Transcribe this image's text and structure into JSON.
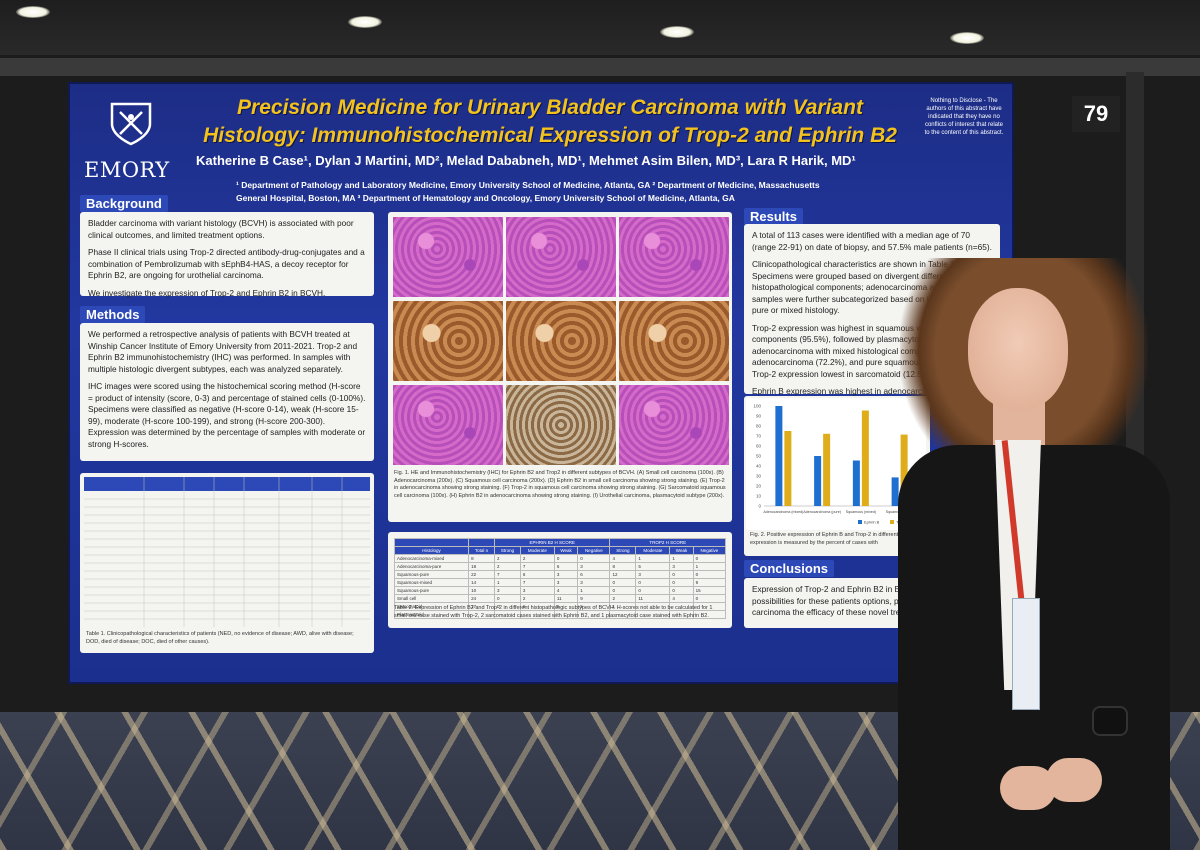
{
  "booth_number": "79",
  "logo": {
    "name": "EMORY"
  },
  "poster": {
    "title_line1": "Precision Medicine for Urinary Bladder Carcinoma with Variant",
    "title_line2": "Histology: Immunohistochemical Expression of Trop-2 and Ephrin B2",
    "authors": "Katherine B Case¹, Dylan J Martini, MD², Melad Dababneh, MD¹, Mehmet Asim Bilen, MD³, Lara R Harik, MD¹",
    "affiliations_line1": "¹ Department of Pathology and Laboratory Medicine, Emory University School of Medicine, Atlanta, GA ² Department of Medicine, Massachusetts",
    "affiliations_line2": "General Hospital, Boston, MA ³ Department of Hematology and Oncology, Emory University School of Medicine, Atlanta, GA",
    "disclosure": "Nothing to Disclose - The authors of this abstract have indicated that they have no conflicts of interest that relate to the content of this abstract.",
    "background": {
      "heading": "Background",
      "p1": "Bladder carcinoma with variant histology (BCVH) is associated with poor clinical outcomes, and limited treatment options.",
      "p2": "Phase II clinical trials using Trop-2 directed antibody-drug-conjugates and a combination of Pembrolizumab with sEphB4-HAS, a decoy receptor for Ephrin B2, are ongoing for urothelial carcinoma.",
      "p3": "We investigate the expression of Trop-2 and Ephrin B2 in BCVH."
    },
    "methods": {
      "heading": "Methods",
      "p1": "We performed a retrospective analysis of patients with BCVH treated at Winship Cancer Institute of Emory University from 2011-2021. Trop-2 and Ephrin B2 immunohistochemistry (IHC) was performed. In samples with multiple histologic divergent subtypes, each was analyzed separately.",
      "p2": "IHC images were scored using the histochemical scoring method (H-score = product of intensity (score, 0-3) and percentage of stained cells (0-100%). Specimens were classified as negative (H-score 0-14), weak (H-score 15-99), moderate (H-score 100-199), and strong (H-score 200-300). Expression was determined by the percentage of samples with moderate or strong H-scores."
    },
    "table1_caption": "Table 1. Clinicopathological characteristics of patients (NED, no evidence of disease; AWD, alive with disease; DOD, died of disease; DOC, died of other causes).",
    "fig1_caption": "Fig. 1. HE and Immunohistochemistry (IHC) for Ephrin B2 and Trop2 in different subtypes of BCVH. (A) Small cell carcinoma (100x). (B) Adenocarcinoma (200x). (C) Squamous cell carcinoma (200x). (D) Ephrin B2 in small cell carcinoma showing strong staining. (E) Trop-2 in adenocarcinoma showing strong staining. (F) Trop-2 in squamous cell carcinoma showing strong staining. (G) Sarcomatoid squamous cell carcinoma (100x). (H) Ephrin B2 in adenocarcinoma showing strong staining. (I) Urothelial carcinoma, plasmacytoid subtype (200x).",
    "table2": {
      "group1": "EPHRIN B2 H SCORE",
      "group2": "TROP2 H SCORE",
      "headers": [
        "Histology",
        "Total n",
        "Strong",
        "Moderate",
        "Weak",
        "Negative",
        "Strong",
        "Moderate",
        "Weak",
        "Negative"
      ],
      "rows": [
        [
          "Adenocarcinoma-mixed",
          "8",
          "2",
          "2",
          "0",
          "0",
          "4",
          "1",
          "1",
          "0"
        ],
        [
          "Adenocarcinoma-pure",
          "18",
          "2",
          "7",
          "6",
          "3",
          "8",
          "5",
          "3",
          "1"
        ],
        [
          "Squamous-pure",
          "22",
          "7",
          "6",
          "3",
          "6",
          "12",
          "3",
          "0",
          "0"
        ],
        [
          "Squamous-mixed",
          "14",
          "1",
          "7",
          "3",
          "3",
          "0",
          "0",
          "0",
          "9"
        ],
        [
          "Squamous-pure",
          "10",
          "3",
          "3",
          "4",
          "1",
          "0",
          "0",
          "0",
          "15"
        ],
        [
          "Small cell",
          "24",
          "0",
          "2",
          "11",
          "9",
          "2",
          "11",
          "4",
          "0"
        ],
        [
          "Sarcomatoid",
          "17",
          "0",
          "6",
          "5",
          "5",
          "1",
          "",
          "",
          ""
        ],
        [
          "Plasmacytoid",
          "",
          "",
          "",
          "",
          "",
          "",
          "",
          "",
          ""
        ]
      ],
      "caption": "Table 2. Expression of Ephrin B2 and Trop-2 in different histopathologic subtypes of BCVH. H-scores not able to be calculated for 1 small cell case stained with Trop-2, 2 sarcomatoid cases stained with Ephrin B2, and 1 plasmacytoid case stained with Ephrin B2."
    },
    "results": {
      "heading": "Results",
      "p1": "A total of 113 cases were identified with a median age of 70 (range 22-91) on date of biopsy, and 57.5% male patients (n=65).",
      "p2": "Clinicopathological characteristics are shown in Table 1. Specimens were grouped based on divergent differentiation of histopathological components; adenocarcinoma and squamous samples were further subcategorized based on the presence of pure or mixed histology.",
      "p3": "Trop-2 expression was highest in squamous with mixed histology components (95.5%), followed by plasmacytoid (76.5%), adenocarcinoma with mixed histological components (75.0%), adenocarcinoma (72.2%), and pure squamous (71.42%) (Fig. Trop-2 expression lowest in sarcomatoid (12.5%) and small",
      "p4": "Ephrin B expression was highest in adenocarcinoma mixed (100%), followed by pure adenocarcinoma (50%), small squamous mixed-type (45.5%), pure squamous (28.6% (37.5%), and sarcomatoid (9.1%)."
    },
    "fig2_caption": "Fig. 2. Positive expression of Ephrin B and Trop-2 in different positive expression is measured by the percent of cases with",
    "conclusions": {
      "heading": "Conclusions",
      "text": "Expression of Trop-2 and Ephrin B2 in BCV therapeutic possibilities for these patients options, particularly in small cell carcinoma the efficacy of these novel treatments in BC"
    }
  },
  "chart_data": {
    "type": "bar",
    "categories": [
      "Adenocarcinoma (mixed)",
      "Adenocarcinoma (pure)",
      "Squamous (mixed)",
      "Squamous (pure)"
    ],
    "series": [
      {
        "name": "Ephrin B",
        "values": [
          100,
          50,
          45.5,
          28.6
        ]
      },
      {
        "name": "Trop-2",
        "values": [
          75.0,
          72.2,
          95.5,
          71.42
        ]
      }
    ],
    "ylim": [
      0,
      100
    ],
    "yticks": [
      0,
      10,
      20,
      30,
      40,
      50,
      60,
      70,
      80,
      90,
      100
    ],
    "colors": [
      "#1f6fd1",
      "#e0ad1a"
    ],
    "grid": false,
    "legend": "bottom-right"
  }
}
